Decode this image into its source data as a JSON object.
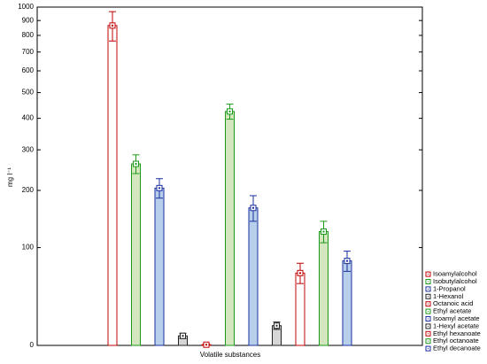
{
  "chart_data": {
    "type": "bar",
    "ylabel": "mg l⁻¹",
    "xlabel": "Volatile substances",
    "ylim": [
      0,
      1000
    ],
    "yticks": [
      0,
      100,
      200,
      300,
      400,
      500,
      600,
      700,
      800,
      900,
      1000
    ],
    "legend": "bottom-right",
    "series": [
      {
        "name": "Isoamylalcohol",
        "color": "#c00000",
        "fill": "#ffffff",
        "values": [
          865
        ],
        "errors": [
          100
        ]
      },
      {
        "name": "Isobutylalcohol",
        "color": "#1a9a1a",
        "fill": "#d3e6bd",
        "values": [
          262
        ],
        "errors": [
          24
        ]
      },
      {
        "name": "1-Propanol",
        "color": "#1a2fa0",
        "fill": "#b7cfea",
        "values": [
          205
        ],
        "errors": [
          21
        ]
      },
      {
        "name": "1-Hexanol",
        "color": "#222222",
        "fill": "#d6d6d6",
        "values": [
          7
        ],
        "errors": [
          2
        ]
      },
      {
        "name": "Octanoic acid",
        "color": "#c00000",
        "fill": "#ffffff",
        "values": [
          0.5
        ],
        "errors": [
          0.5
        ]
      },
      {
        "name": "Ethyl acetate",
        "color": "#1a9a1a",
        "fill": "#d3e6bd",
        "values": [
          425
        ],
        "errors": [
          28
        ]
      },
      {
        "name": "Isoamyl acetate",
        "color": "#1a2fa0",
        "fill": "#b7cfea",
        "values": [
          165
        ],
        "errors": [
          24
        ]
      },
      {
        "name": "1-Hexyl acetate",
        "color": "#222222",
        "fill": "#d6d6d6",
        "values": [
          15
        ],
        "errors": [
          3
        ]
      },
      {
        "name": "Ethyl hexanoate",
        "color": "#c00000",
        "fill": "#ffffff",
        "values": [
          67
        ],
        "errors": [
          12
        ]
      },
      {
        "name": "Ethyl octanoate",
        "color": "#1a9a1a",
        "fill": "#d3e6bd",
        "values": [
          124
        ],
        "errors": [
          17
        ]
      },
      {
        "name": "Ethyl decanoate",
        "color": "#1a2fa0",
        "fill": "#b7cfea",
        "values": [
          82
        ],
        "errors": [
          13
        ]
      }
    ]
  }
}
